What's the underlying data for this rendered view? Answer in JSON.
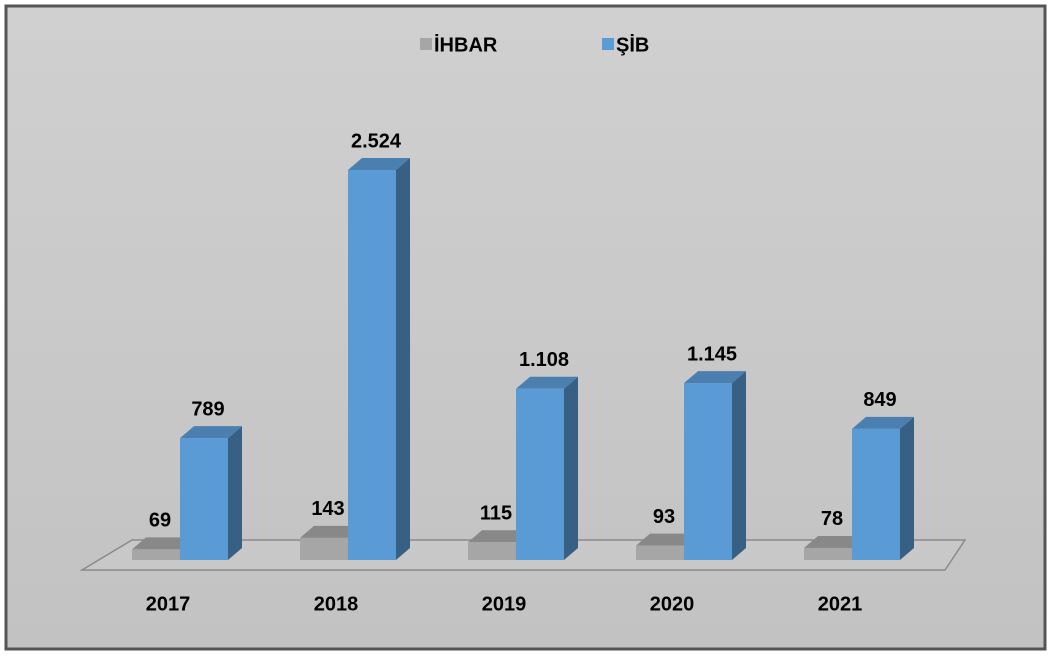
{
  "chart_data": {
    "type": "bar3d",
    "categories": [
      "2017",
      "2018",
      "2019",
      "2020",
      "2021"
    ],
    "series": [
      {
        "name": "İHBAR",
        "color": "#a6a6a6",
        "values": [
          69,
          143,
          115,
          93,
          78
        ]
      },
      {
        "name": "ŞİB",
        "color": "#5b9bd5",
        "values": [
          789,
          2524,
          1108,
          1145,
          849
        ],
        "value_labels": [
          "789",
          "2.524",
          "1.108",
          "1.145",
          "849"
        ]
      }
    ],
    "legend": "top"
  }
}
